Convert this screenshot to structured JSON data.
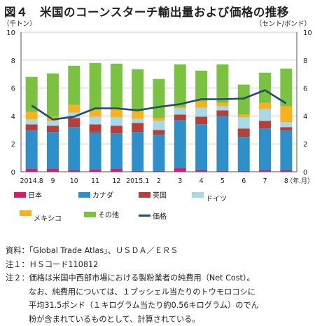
{
  "title": "図４　米国のコーンスターチ輸出量および価格の推移",
  "unit_left": "（千トン）",
  "unit_right": "（セント/ポンド）",
  "chart_data": {
    "type": "bar",
    "stacked": true,
    "categories": [
      "2014.8",
      "9",
      "10",
      "11",
      "12",
      "2015.1",
      "2",
      "3",
      "4",
      "5",
      "6",
      "7",
      "8"
    ],
    "x_unit": "（年.月）",
    "ylim": [
      0,
      10
    ],
    "y2lim": [
      0,
      10
    ],
    "yticks": [
      0,
      2,
      4,
      6,
      8,
      10
    ],
    "grid": true,
    "series": [
      {
        "name": "日本",
        "color": "#d81b6a",
        "values": [
          0.2,
          0.2,
          0.1,
          0.15,
          0.2,
          0.05,
          0.05,
          0.25,
          0.1,
          0.05,
          0.05,
          0.1,
          0.1
        ]
      },
      {
        "name": "カナダ",
        "color": "#2f8fc8",
        "values": [
          2.75,
          2.65,
          3.1,
          2.65,
          2.55,
          2.8,
          2.6,
          3.45,
          3.3,
          3.95,
          2.45,
          3.0,
          2.85
        ]
      },
      {
        "name": "英国",
        "color": "#b3403a",
        "values": [
          0.45,
          0.45,
          0.65,
          0.6,
          0.55,
          0.65,
          0.35,
          0.4,
          0.55,
          0.4,
          0.6,
          0.55,
          0.25
        ]
      },
      {
        "name": "ドイツ",
        "color": "#a9d8e6",
        "values": [
          0.35,
          0.35,
          0.4,
          0.55,
          0.6,
          0.3,
          0.65,
          0.45,
          0.65,
          0.3,
          0.8,
          0.85,
          0.35
        ]
      },
      {
        "name": "メキシコ",
        "color": "#f6b21f",
        "values": [
          0.55,
          0.3,
          0.55,
          0.5,
          0.7,
          0.55,
          0.2,
          0.1,
          0.45,
          0.25,
          0.2,
          0.45,
          1.15
        ]
      },
      {
        "name": "その他",
        "color": "#7cc242",
        "values": [
          2.5,
          3.1,
          2.8,
          3.35,
          3.15,
          3.0,
          2.8,
          3.05,
          2.2,
          2.75,
          2.15,
          2.15,
          2.7
        ]
      }
    ],
    "line": {
      "name": "価格",
      "color": "#1f4e66",
      "axis": "right",
      "values": [
        4.75,
        3.75,
        3.95,
        4.55,
        4.55,
        4.4,
        4.65,
        4.85,
        5.2,
        5.2,
        5.25,
        5.85,
        4.9
      ]
    }
  },
  "notes": [
    "資料：「Global Trade Atlas」、ＵＳＤＡ／ＥＲＳ",
    "注１：ＨＳコード110812",
    "注２：価格は米国中西部市場における製粉業者の純費用（Net Cost）。",
    "なお、純費用については、１ブッシェル当たりのトウモロコシに",
    "平均31.5ポンド（１キログラム当たり約0.56キログラム）のでん",
    "粉が含まれているものとして、計算されている。"
  ]
}
